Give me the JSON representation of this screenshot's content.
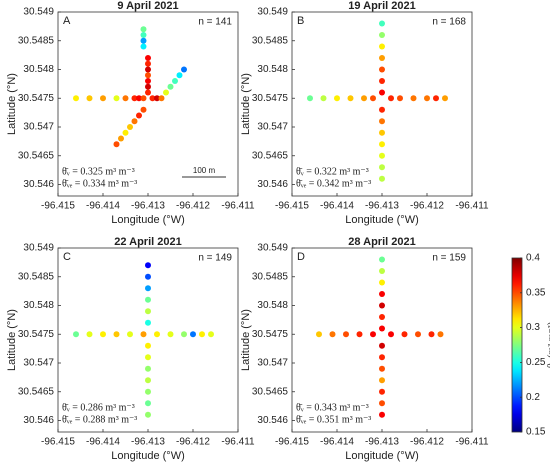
{
  "chart_data": [
    {
      "type": "scatter",
      "title": "9 April 2021",
      "label": "A",
      "n_label": "n = 141",
      "annotations": [
        "θ̄ᵥ = 0.325 m³ m⁻³",
        "θ̄ᵥₑ = 0.334 m³ m⁻³"
      ],
      "scale_label": "100 m",
      "xlabel": "Longitude (°W)",
      "ylabel": "Latitude (°N)",
      "xlim": [
        -96.415,
        -96.411
      ],
      "xticks": [
        -96.415,
        -96.414,
        -96.413,
        -96.412,
        -96.411
      ],
      "ylim": [
        30.5458,
        30.549
      ],
      "yticks": [
        30.546,
        30.5465,
        30.547,
        30.5475,
        30.548,
        30.5485,
        30.549
      ],
      "x": [
        -96.4131,
        -96.4131,
        -96.4131,
        -96.4131,
        -96.413,
        -96.413,
        -96.413,
        -96.413,
        -96.413,
        -96.413,
        -96.413,
        -96.4146,
        -96.4143,
        -96.414,
        -96.4137,
        -96.4135,
        -96.4133,
        -96.4132,
        -96.4131,
        -96.4129,
        -96.4128,
        -96.4127,
        -96.4126,
        -96.4125,
        -96.4124,
        -96.4123,
        -96.4122,
        -96.4131,
        -96.4132,
        -96.4133,
        -96.4134,
        -96.4135,
        -96.4136,
        -96.4137
      ],
      "y": [
        30.5487,
        30.5486,
        30.5485,
        30.5484,
        30.5482,
        30.5481,
        30.548,
        30.5479,
        30.5478,
        30.5477,
        30.5476,
        30.5475,
        30.5475,
        30.5475,
        30.5475,
        30.5475,
        30.5475,
        30.5475,
        30.5475,
        30.5475,
        30.5475,
        30.5475,
        30.5476,
        30.5477,
        30.5478,
        30.5479,
        30.548,
        30.5473,
        30.5472,
        30.5471,
        30.547,
        30.5469,
        30.5468,
        30.5467
      ],
      "values": [
        0.27,
        0.26,
        0.22,
        0.24,
        0.37,
        0.36,
        0.38,
        0.35,
        0.37,
        0.38,
        0.36,
        0.31,
        0.32,
        0.33,
        0.3,
        0.34,
        0.36,
        0.37,
        0.35,
        0.36,
        0.38,
        0.34,
        0.3,
        0.27,
        0.26,
        0.24,
        0.21,
        0.35,
        0.36,
        0.34,
        0.32,
        0.31,
        0.33,
        0.35
      ]
    },
    {
      "type": "scatter",
      "title": "19 April 2021",
      "label": "B",
      "n_label": "n = 168",
      "annotations": [
        "θ̄ᵥ = 0.322 m³ m⁻³",
        "θ̄ᵥₑ = 0.342 m³ m⁻³"
      ],
      "xlabel": "Longitude (°W)",
      "ylabel": "Latitude (°N)",
      "xlim": [
        -96.415,
        -96.411
      ],
      "xticks": [
        -96.415,
        -96.414,
        -96.413,
        -96.412,
        -96.411
      ],
      "ylim": [
        30.5458,
        30.549
      ],
      "yticks": [
        30.546,
        30.5465,
        30.547,
        30.5475,
        30.548,
        30.5485,
        30.549
      ],
      "x": [
        -96.413,
        -96.413,
        -96.413,
        -96.413,
        -96.413,
        -96.413,
        -96.413,
        -96.413,
        -96.413,
        -96.413,
        -96.413,
        -96.413,
        -96.413,
        -96.413,
        -96.4146,
        -96.4143,
        -96.414,
        -96.4137,
        -96.4134,
        -96.4132,
        -96.4128,
        -96.4126,
        -96.4123,
        -96.412,
        -96.4118,
        -96.4116
      ],
      "y": [
        30.5488,
        30.5486,
        30.5484,
        30.5482,
        30.548,
        30.5478,
        30.5476,
        30.5473,
        30.5471,
        30.5469,
        30.5467,
        30.5465,
        30.5463,
        30.5461,
        30.5475,
        30.5475,
        30.5475,
        30.5475,
        30.5475,
        30.5475,
        30.5475,
        30.5475,
        30.5475,
        30.5475,
        30.5475,
        30.5475
      ],
      "values": [
        0.26,
        0.28,
        0.31,
        0.33,
        0.35,
        0.36,
        0.37,
        0.36,
        0.34,
        0.32,
        0.31,
        0.3,
        0.29,
        0.29,
        0.27,
        0.29,
        0.31,
        0.32,
        0.33,
        0.35,
        0.36,
        0.35,
        0.34,
        0.34,
        0.36,
        0.33
      ]
    },
    {
      "type": "scatter",
      "title": "22 April 2021",
      "label": "C",
      "n_label": "n = 149",
      "annotations": [
        "θ̄ᵥ = 0.286 m³ m⁻³",
        "θ̄ᵥₑ = 0.288 m³ m⁻³"
      ],
      "xlabel": "Longitude (°W)",
      "ylabel": "Latitude (°N)",
      "xlim": [
        -96.415,
        -96.411
      ],
      "xticks": [
        -96.415,
        -96.414,
        -96.413,
        -96.412,
        -96.411
      ],
      "ylim": [
        30.5458,
        30.549
      ],
      "yticks": [
        30.546,
        30.5465,
        30.547,
        30.5475,
        30.548,
        30.5485,
        30.549
      ],
      "x": [
        -96.413,
        -96.413,
        -96.413,
        -96.413,
        -96.413,
        -96.413,
        -96.413,
        -96.413,
        -96.413,
        -96.413,
        -96.413,
        -96.413,
        -96.413,
        -96.4146,
        -96.4143,
        -96.414,
        -96.4137,
        -96.4134,
        -96.4131,
        -96.4128,
        -96.4125,
        -96.4122,
        -96.412,
        -96.4118,
        -96.4116
      ],
      "y": [
        30.5487,
        30.5485,
        30.5483,
        30.5481,
        30.5479,
        30.5477,
        30.5473,
        30.5471,
        30.5469,
        30.5467,
        30.5465,
        30.5463,
        30.5461,
        30.5475,
        30.5475,
        30.5475,
        30.5475,
        30.5475,
        30.5475,
        30.5475,
        30.5475,
        30.5475,
        30.5475,
        30.5475,
        30.5475
      ],
      "values": [
        0.18,
        0.2,
        0.22,
        0.27,
        0.29,
        0.25,
        0.31,
        0.3,
        0.28,
        0.29,
        0.28,
        0.27,
        0.28,
        0.27,
        0.3,
        0.31,
        0.32,
        0.3,
        0.33,
        0.31,
        0.3,
        0.28,
        0.21,
        0.31,
        0.3
      ]
    },
    {
      "type": "scatter",
      "title": "28 April 2021",
      "label": "D",
      "n_label": "n = 159",
      "annotations": [
        "θ̄ᵥ = 0.343 m³ m⁻³",
        "θ̄ᵥₑ = 0.351 m³ m⁻³"
      ],
      "xlabel": "Longitude (°W)",
      "ylabel": "Latitude (°N)",
      "xlim": [
        -96.415,
        -96.411
      ],
      "xticks": [
        -96.415,
        -96.414,
        -96.413,
        -96.412,
        -96.411
      ],
      "ylim": [
        30.5458,
        30.549
      ],
      "yticks": [
        30.546,
        30.5465,
        30.547,
        30.5475,
        30.548,
        30.5485,
        30.549
      ],
      "x": [
        -96.413,
        -96.413,
        -96.413,
        -96.413,
        -96.413,
        -96.413,
        -96.413,
        -96.413,
        -96.413,
        -96.413,
        -96.413,
        -96.413,
        -96.413,
        -96.413,
        -96.4144,
        -96.4141,
        -96.4138,
        -96.4135,
        -96.4132,
        -96.4128,
        -96.4125,
        -96.4122,
        -96.4119,
        -96.4117
      ],
      "y": [
        30.5488,
        30.5486,
        30.5484,
        30.5482,
        30.548,
        30.5478,
        30.5476,
        30.5473,
        30.5471,
        30.5469,
        30.5467,
        30.5465,
        30.5463,
        30.5461,
        30.5475,
        30.5475,
        30.5475,
        30.5475,
        30.5475,
        30.5475,
        30.5475,
        30.5475,
        30.5475,
        30.5475
      ],
      "values": [
        0.27,
        0.29,
        0.31,
        0.37,
        0.38,
        0.36,
        0.37,
        0.38,
        0.36,
        0.35,
        0.33,
        0.36,
        0.35,
        0.37,
        0.32,
        0.34,
        0.35,
        0.36,
        0.37,
        0.37,
        0.36,
        0.35,
        0.36,
        0.34
      ]
    }
  ],
  "colorbar": {
    "colormap": "jet",
    "clim": [
      0.15,
      0.4
    ],
    "ticks": [
      0.15,
      0.2,
      0.25,
      0.3,
      0.35,
      0.4
    ],
    "label": "θᵥ (m³ m⁻³)"
  }
}
